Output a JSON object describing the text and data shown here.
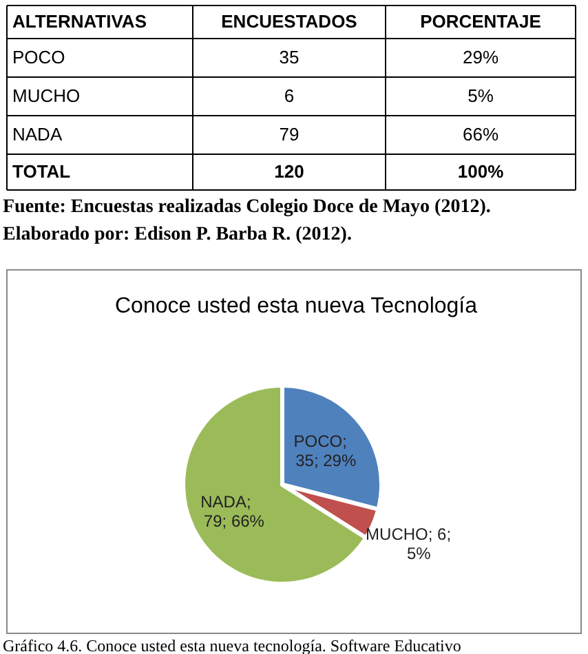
{
  "chart_data": {
    "type": "pie",
    "title": "Conoce usted esta nueva Tecnología",
    "categories": [
      "POCO",
      "MUCHO",
      "NADA"
    ],
    "values": [
      29,
      5,
      66
    ],
    "colors": [
      "#4f81bd",
      "#c0504d",
      "#9bbb59"
    ],
    "value_labels": [
      ";\n35; 29%",
      "; 6;\n5%",
      " ;\n79; 66%"
    ],
    "annotations": [
      "ALTERNATIVAS",
      "ENCUESTADOS",
      "PORCENTAJE",
      "POCO",
      "35",
      "29%",
      "MUCHO",
      "6",
      "5%",
      "NADA",
      "79",
      "66%",
      "TOTAL",
      "120",
      "100%",
      "Fuente: Encuestas realizadas Colegio Doce de Mayo (2012).",
      "Elaborado por: Edison P. Barba R. (2012).",
      "Gráfico 4.6. Conoce usted esta nueva tecnología. Software Educativo"
    ]
  }
}
